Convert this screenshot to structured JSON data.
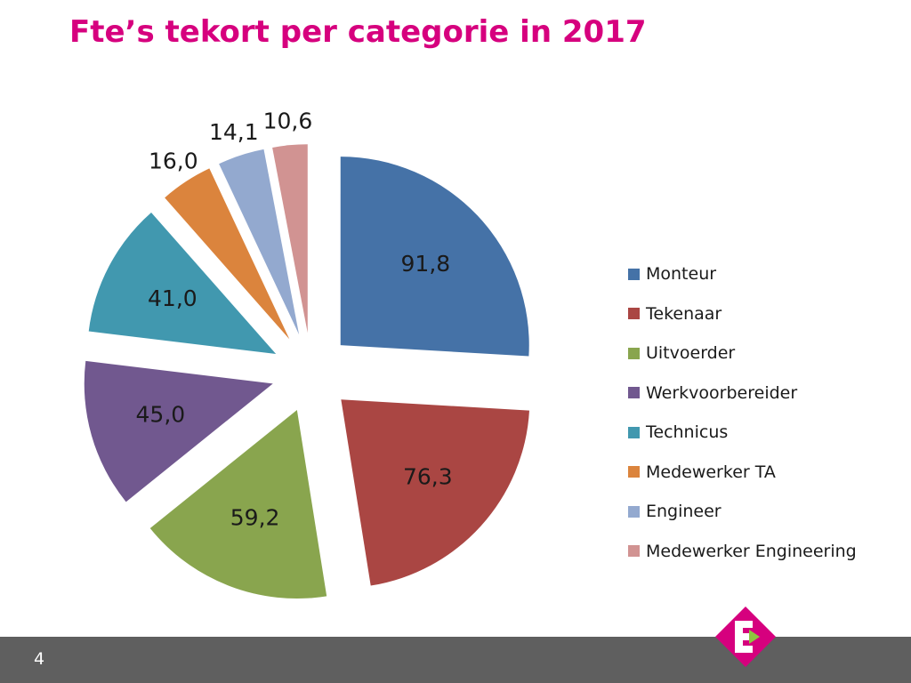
{
  "slide": {
    "title": "Fte’s tekort per categorie in 2017",
    "page_number": "4",
    "brand": "ENEXIS"
  },
  "colors": {
    "title": "#d6007e",
    "footer": "#5f5f5f",
    "logo_magenta": "#d6007e",
    "logo_green": "#8dc63f"
  },
  "chart_data": {
    "type": "pie",
    "title": "",
    "exploded": true,
    "legend_position": "right",
    "slices": [
      {
        "name": "Monteur",
        "value": 91.8,
        "label": "91,8",
        "color": "#4572a7"
      },
      {
        "name": "Tekenaar",
        "value": 76.3,
        "label": "76,3",
        "color": "#aa4643"
      },
      {
        "name": "Uitvoerder",
        "value": 59.2,
        "label": "59,2",
        "color": "#89a54e"
      },
      {
        "name": "Werkvoorbereider",
        "value": 45.0,
        "label": "45,0",
        "color": "#71588f"
      },
      {
        "name": "Technicus",
        "value": 41.0,
        "label": "41,0",
        "color": "#4198af"
      },
      {
        "name": "Medewerker TA",
        "value": 16.0,
        "label": "16,0",
        "color": "#db843d"
      },
      {
        "name": "Engineer",
        "value": 14.1,
        "label": "14,1",
        "color": "#93a9cf"
      },
      {
        "name": "Medewerker Engineering",
        "value": 10.6,
        "label": "10,6",
        "color": "#d19392"
      }
    ]
  }
}
